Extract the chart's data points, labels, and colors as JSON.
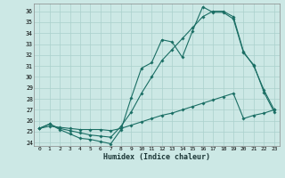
{
  "xlabel": "Humidex (Indice chaleur)",
  "bg_color": "#cce8e5",
  "grid_color": "#aad0cc",
  "line_color": "#1a6e64",
  "xlim_min": -0.5,
  "xlim_max": 23.5,
  "ylim_min": 23.7,
  "ylim_max": 36.7,
  "xticks": [
    0,
    1,
    2,
    3,
    4,
    5,
    6,
    7,
    8,
    9,
    10,
    11,
    12,
    13,
    14,
    15,
    16,
    17,
    18,
    19,
    20,
    21,
    22,
    23
  ],
  "yticks": [
    24,
    25,
    26,
    27,
    28,
    29,
    30,
    31,
    32,
    33,
    34,
    35,
    36
  ],
  "line1_x": [
    0,
    1,
    2,
    3,
    4,
    5,
    6,
    7,
    8,
    9,
    10,
    11,
    12,
    13,
    14,
    15,
    16,
    17,
    18,
    19,
    20,
    21,
    22,
    23
  ],
  "line1_y": [
    25.3,
    25.7,
    25.2,
    24.8,
    24.4,
    24.3,
    24.1,
    23.9,
    25.2,
    28.1,
    30.8,
    31.3,
    33.4,
    33.2,
    31.8,
    34.2,
    36.4,
    35.9,
    35.9,
    35.3,
    32.2,
    31.1,
    28.6,
    26.8
  ],
  "line2_x": [
    0,
    1,
    2,
    3,
    4,
    5,
    6,
    7,
    8,
    9,
    10,
    11,
    12,
    13,
    14,
    15,
    16,
    17,
    18,
    19,
    20,
    21,
    22,
    23
  ],
  "line2_y": [
    25.3,
    25.7,
    25.3,
    25.1,
    24.9,
    24.7,
    24.6,
    24.5,
    25.5,
    26.8,
    28.5,
    30.0,
    31.5,
    32.5,
    33.5,
    34.5,
    35.5,
    36.0,
    36.0,
    35.5,
    32.3,
    31.0,
    28.8,
    27.0
  ],
  "line3_x": [
    0,
    1,
    2,
    3,
    4,
    5,
    6,
    7,
    8,
    9,
    10,
    11,
    12,
    13,
    14,
    15,
    16,
    17,
    18,
    19,
    20,
    21,
    22,
    23
  ],
  "line3_y": [
    25.3,
    25.5,
    25.4,
    25.3,
    25.2,
    25.2,
    25.2,
    25.1,
    25.3,
    25.6,
    25.9,
    26.2,
    26.5,
    26.7,
    27.0,
    27.3,
    27.6,
    27.9,
    28.2,
    28.5,
    26.2,
    26.5,
    26.7,
    27.0
  ]
}
